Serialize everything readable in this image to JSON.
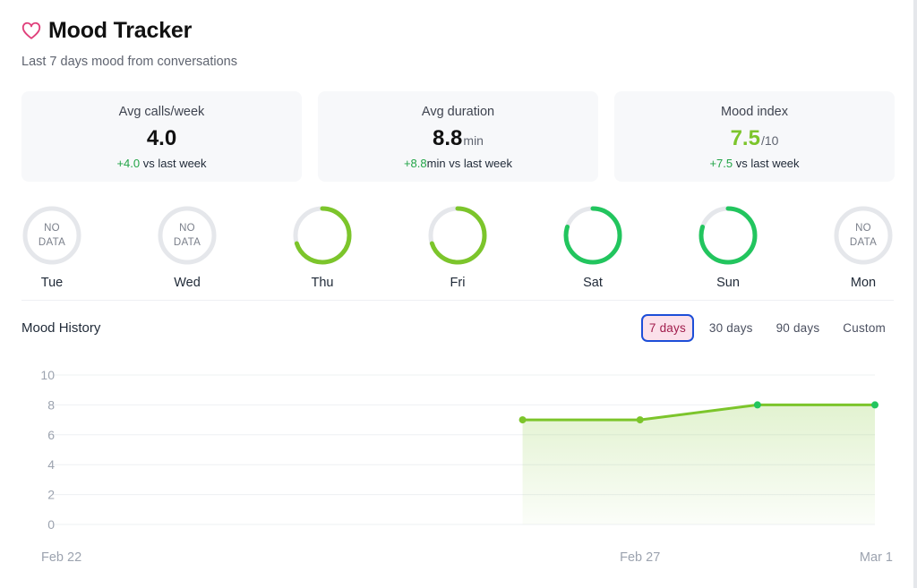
{
  "header": {
    "title": "Mood Tracker",
    "subtitle": "Last 7 days mood from conversations",
    "icon": "heart-icon"
  },
  "stats": [
    {
      "label": "Avg calls/week",
      "value": "4.0",
      "unit": "",
      "delta_value": "+4.0",
      "delta_unit": "",
      "delta_suffix": " vs last week"
    },
    {
      "label": "Avg duration",
      "value": "8.8",
      "unit": "min",
      "delta_value": "+8.8",
      "delta_unit": "min",
      "delta_suffix": " vs last week"
    },
    {
      "label": "Mood index",
      "value": "7.5",
      "unit": "/10",
      "delta_value": "+7.5",
      "delta_unit": "",
      "delta_suffix": " vs last week"
    }
  ],
  "days": [
    {
      "label": "Tue",
      "has_data": false,
      "no_data_line1": "NO",
      "no_data_line2": "DATA",
      "mood": null,
      "color": "#e5e7eb"
    },
    {
      "label": "Wed",
      "has_data": false,
      "no_data_line1": "NO",
      "no_data_line2": "DATA",
      "mood": null,
      "color": "#e5e7eb"
    },
    {
      "label": "Thu",
      "has_data": true,
      "mood": 7,
      "color": "#7cc52b"
    },
    {
      "label": "Fri",
      "has_data": true,
      "mood": 7,
      "color": "#7cc52b"
    },
    {
      "label": "Sat",
      "has_data": true,
      "mood": 8,
      "color": "#22c55e"
    },
    {
      "label": "Sun",
      "has_data": true,
      "mood": 8,
      "color": "#22c55e"
    },
    {
      "label": "Mon",
      "has_data": false,
      "no_data_line1": "NO",
      "no_data_line2": "DATA",
      "mood": null,
      "color": "#e5e7eb"
    }
  ],
  "history": {
    "title": "Mood History",
    "ranges": [
      {
        "label": "7 days",
        "active": true
      },
      {
        "label": "30 days",
        "active": false
      },
      {
        "label": "90 days",
        "active": false
      },
      {
        "label": "Custom",
        "active": false
      }
    ]
  },
  "colors": {
    "accent_pink": "#e0407b",
    "mood_green": "#7cc52b",
    "mood_dark_green": "#22c55e",
    "positive_delta": "#22a447"
  },
  "chart_data": {
    "type": "area",
    "x": [
      "2025-02-22",
      "2025-02-23",
      "2025-02-24",
      "2025-02-25",
      "2025-02-26",
      "2025-02-27",
      "2025-02-28",
      "2025-03-01"
    ],
    "x_tick_labels": [
      "Feb 22",
      "Feb 27",
      "Mar 1"
    ],
    "x_tick_values": [
      "2025-02-22",
      "2025-02-27",
      "2025-03-01"
    ],
    "series": [
      {
        "values": [
          null,
          null,
          null,
          null,
          7,
          7,
          8,
          8
        ],
        "color": "#7cc52b"
      }
    ],
    "y_ticks": [
      0,
      2,
      4,
      6,
      8,
      10
    ],
    "ylim": [
      0,
      10
    ],
    "grid": true,
    "title": "",
    "xlabel": "",
    "ylabel": ""
  }
}
